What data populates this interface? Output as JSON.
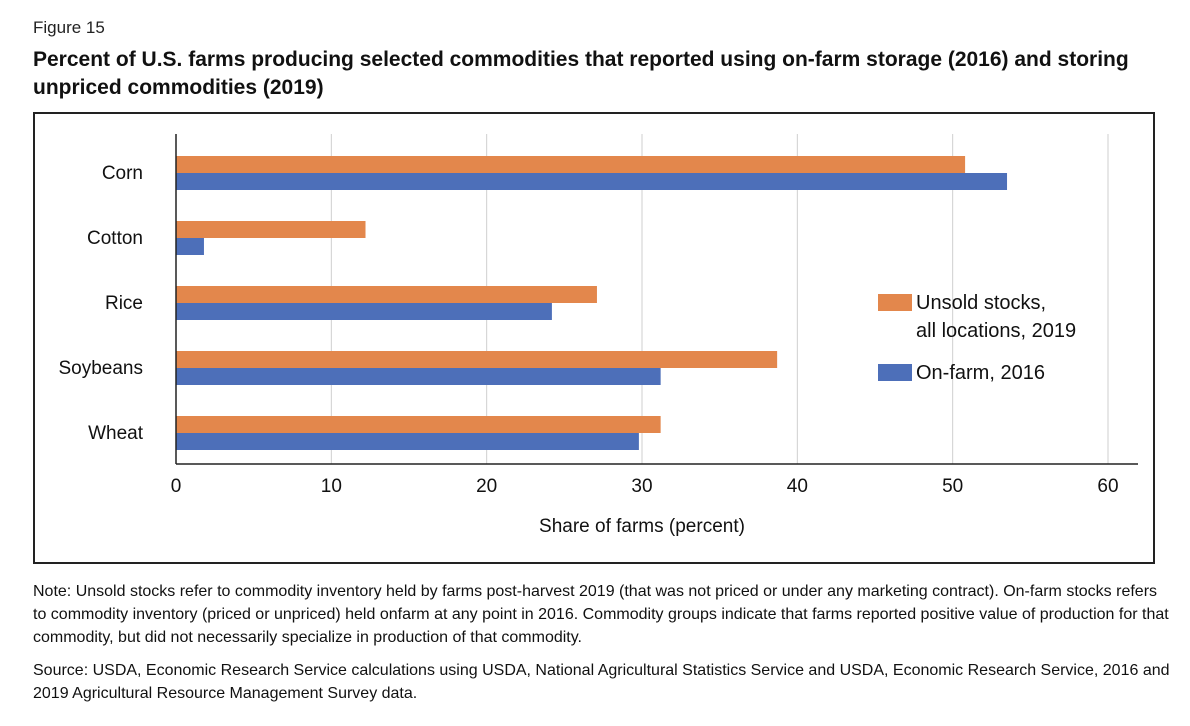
{
  "figure_label": "Figure 15",
  "title": "Percent of U.S. farms producing selected commodities that reported using on-farm storage (2016) and storing unpriced commodities (2019)",
  "note": "Note: Unsold stocks refer to commodity inventory held by farms post-harvest 2019 (that was not priced or under any marketing contract). On-farm stocks refers to commodity inventory (priced or unpriced) held onfarm at any point in 2016. Commodity groups indicate that farms reported positive value of production for that commodity, but did not necessarily specialize in production of that commodity.",
  "source": "Source: USDA, Economic Research Service calculations using USDA, National Agricultural Statistics Service and USDA, Economic Research Service, 2016 and 2019 Agricultural Resource Management Survey data.",
  "chart_data": {
    "type": "bar",
    "orientation": "horizontal",
    "categories": [
      "Corn",
      "Cotton",
      "Rice",
      "Soybeans",
      "Wheat"
    ],
    "series": [
      {
        "name": "Unsold stocks, all locations, 2019",
        "legend_lines": [
          "Unsold stocks,",
          "all locations, 2019"
        ],
        "color": "#E3874C",
        "values": [
          50.8,
          12.2,
          27.1,
          38.7,
          31.2
        ]
      },
      {
        "name": "On-farm, 2016",
        "legend_lines": [
          "On-farm, 2016"
        ],
        "color": "#4D6FB9",
        "values": [
          53.5,
          1.8,
          24.2,
          31.2,
          29.8
        ]
      }
    ],
    "xlabel": "Share of farms (percent)",
    "ylabel": "",
    "xlim": [
      0,
      60
    ],
    "xticks": [
      0,
      10,
      20,
      30,
      40,
      50,
      60
    ],
    "xtick_labels": [
      "0",
      "10",
      "20",
      "30",
      "40",
      "50",
      "60"
    ],
    "grid": "vertical",
    "legend_position": "right"
  }
}
